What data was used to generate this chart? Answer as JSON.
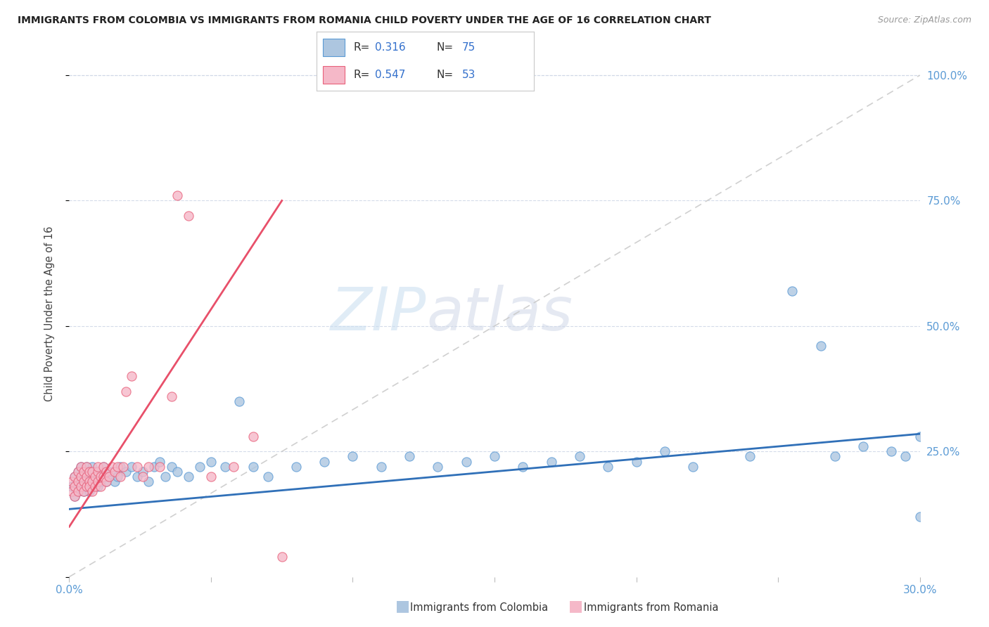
{
  "title": "IMMIGRANTS FROM COLOMBIA VS IMMIGRANTS FROM ROMANIA CHILD POVERTY UNDER THE AGE OF 16 CORRELATION CHART",
  "source": "Source: ZipAtlas.com",
  "ylabel": "Child Poverty Under the Age of 16",
  "colombia_R": 0.316,
  "colombia_N": 75,
  "romania_R": 0.547,
  "romania_N": 53,
  "colombia_color": "#adc6e0",
  "romania_color": "#f5b8c8",
  "colombia_edge_color": "#5b9bd5",
  "romania_edge_color": "#e8607a",
  "colombia_line_color": "#3070b8",
  "romania_line_color": "#e8506a",
  "reference_line_color": "#c8c8c8",
  "watermark_zip": "ZIP",
  "watermark_atlas": "atlas",
  "xlim": [
    0.0,
    0.3
  ],
  "ylim": [
    0.0,
    1.05
  ],
  "background_color": "#ffffff",
  "grid_color": "#d0d8e8",
  "colombia_x": [
    0.001,
    0.002,
    0.002,
    0.003,
    0.003,
    0.003,
    0.004,
    0.004,
    0.004,
    0.005,
    0.005,
    0.005,
    0.006,
    0.006,
    0.006,
    0.007,
    0.007,
    0.007,
    0.008,
    0.008,
    0.009,
    0.009,
    0.01,
    0.01,
    0.011,
    0.011,
    0.012,
    0.012,
    0.013,
    0.014,
    0.015,
    0.016,
    0.017,
    0.018,
    0.02,
    0.022,
    0.024,
    0.026,
    0.028,
    0.03,
    0.032,
    0.034,
    0.036,
    0.038,
    0.042,
    0.046,
    0.05,
    0.055,
    0.06,
    0.065,
    0.07,
    0.08,
    0.09,
    0.1,
    0.11,
    0.12,
    0.13,
    0.14,
    0.15,
    0.16,
    0.17,
    0.18,
    0.19,
    0.2,
    0.21,
    0.22,
    0.24,
    0.255,
    0.265,
    0.27,
    0.28,
    0.29,
    0.295,
    0.3,
    0.3
  ],
  "colombia_y": [
    0.18,
    0.2,
    0.16,
    0.19,
    0.17,
    0.21,
    0.2,
    0.18,
    0.22,
    0.19,
    0.21,
    0.17,
    0.2,
    0.18,
    0.22,
    0.19,
    0.21,
    0.17,
    0.2,
    0.22,
    0.19,
    0.21,
    0.2,
    0.18,
    0.21,
    0.19,
    0.2,
    0.22,
    0.19,
    0.2,
    0.21,
    0.19,
    0.2,
    0.22,
    0.21,
    0.22,
    0.2,
    0.21,
    0.19,
    0.22,
    0.23,
    0.2,
    0.22,
    0.21,
    0.2,
    0.22,
    0.23,
    0.22,
    0.35,
    0.22,
    0.2,
    0.22,
    0.23,
    0.24,
    0.22,
    0.24,
    0.22,
    0.23,
    0.24,
    0.22,
    0.23,
    0.24,
    0.22,
    0.23,
    0.25,
    0.22,
    0.24,
    0.57,
    0.46,
    0.24,
    0.26,
    0.25,
    0.24,
    0.28,
    0.12
  ],
  "romania_x": [
    0.001,
    0.001,
    0.002,
    0.002,
    0.002,
    0.003,
    0.003,
    0.003,
    0.004,
    0.004,
    0.004,
    0.005,
    0.005,
    0.005,
    0.006,
    0.006,
    0.006,
    0.007,
    0.007,
    0.007,
    0.008,
    0.008,
    0.008,
    0.009,
    0.009,
    0.01,
    0.01,
    0.01,
    0.011,
    0.011,
    0.012,
    0.012,
    0.013,
    0.013,
    0.014,
    0.015,
    0.016,
    0.017,
    0.018,
    0.019,
    0.02,
    0.022,
    0.024,
    0.026,
    0.028,
    0.032,
    0.036,
    0.038,
    0.042,
    0.05,
    0.058,
    0.065,
    0.075
  ],
  "romania_y": [
    0.17,
    0.19,
    0.18,
    0.2,
    0.16,
    0.19,
    0.21,
    0.17,
    0.2,
    0.22,
    0.18,
    0.19,
    0.21,
    0.17,
    0.2,
    0.18,
    0.22,
    0.19,
    0.21,
    0.18,
    0.19,
    0.21,
    0.17,
    0.2,
    0.18,
    0.21,
    0.19,
    0.22,
    0.2,
    0.18,
    0.22,
    0.2,
    0.21,
    0.19,
    0.2,
    0.22,
    0.21,
    0.22,
    0.2,
    0.22,
    0.37,
    0.4,
    0.22,
    0.2,
    0.22,
    0.22,
    0.36,
    0.76,
    0.72,
    0.2,
    0.22,
    0.28,
    0.04
  ],
  "colombia_line_x": [
    0.0,
    0.3
  ],
  "colombia_line_y": [
    0.135,
    0.285
  ],
  "romania_line_x": [
    0.0,
    0.075
  ],
  "romania_line_y": [
    0.1,
    0.75
  ]
}
